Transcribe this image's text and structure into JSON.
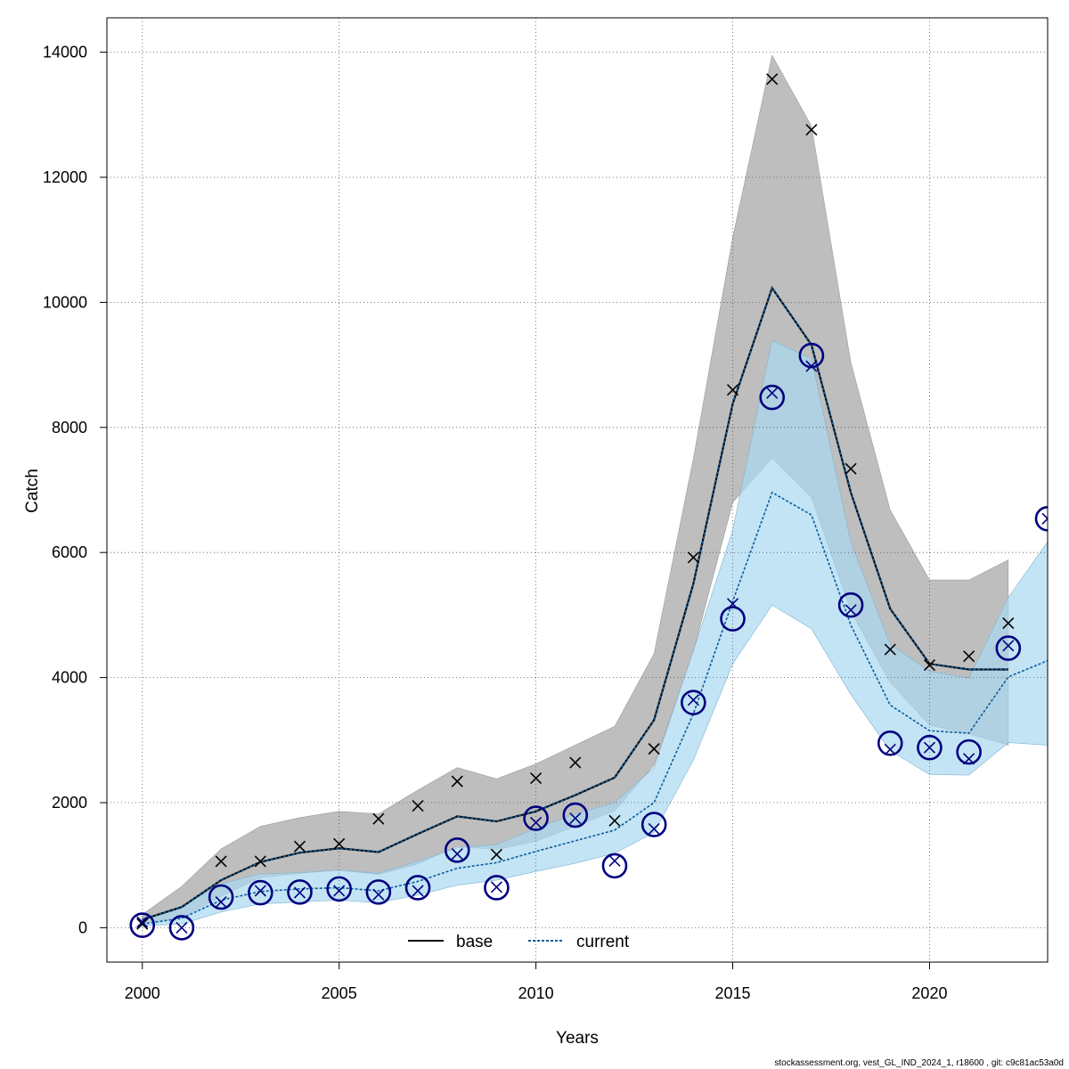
{
  "chart_data": {
    "type": "line",
    "xlabel": "Years",
    "ylabel": "Catch",
    "xlim": [
      1999.1,
      2023.0
    ],
    "ylim": [
      -550,
      14550
    ],
    "x_ticks": [
      2000,
      2005,
      2010,
      2015,
      2020
    ],
    "y_ticks": [
      0,
      2000,
      4000,
      6000,
      8000,
      10000,
      12000,
      14000
    ],
    "grid": true,
    "legend_position": "bottom-center",
    "footer": "stockassessment.org, vest_GL_IND_2024_1, r18600 , git: c9c81ac53a0d",
    "series": [
      {
        "name": "base",
        "color": "#000000",
        "band_color": "#bebebe",
        "x": [
          2000,
          2001,
          2002,
          2003,
          2004,
          2005,
          2006,
          2007,
          2008,
          2009,
          2010,
          2011,
          2012,
          2013,
          2014,
          2015,
          2016,
          2017,
          2018,
          2019,
          2020,
          2021,
          2022
        ],
        "estimate": [
          130,
          330,
          760,
          1050,
          1200,
          1270,
          1210,
          1500,
          1780,
          1700,
          1860,
          2120,
          2400,
          3320,
          5500,
          8380,
          10230,
          9320,
          6960,
          5100,
          4220,
          4130,
          4130
        ],
        "lower": [
          80,
          160,
          500,
          800,
          870,
          920,
          850,
          1020,
          1300,
          1250,
          1380,
          1620,
          1870,
          2600,
          4420,
          6800,
          7510,
          6880,
          5060,
          3920,
          3240,
          3100,
          2920
        ],
        "upper": [
          210,
          660,
          1260,
          1620,
          1760,
          1860,
          1820,
          2200,
          2560,
          2380,
          2620,
          2920,
          3220,
          4380,
          7500,
          11040,
          13950,
          12820,
          9040,
          6680,
          5560,
          5560,
          5880
        ],
        "observed": [
          60,
          null,
          1060,
          1060,
          1300,
          1340,
          1740,
          1950,
          2340,
          1170,
          2390,
          2640,
          1710,
          2860,
          5920,
          8600,
          13570,
          12760,
          7340,
          4450,
          4200,
          4340,
          4870
        ]
      },
      {
        "name": "current",
        "color": "#0b5c9e",
        "band_color": "#aad8f0",
        "x": [
          2000,
          2001,
          2002,
          2003,
          2004,
          2005,
          2006,
          2007,
          2008,
          2009,
          2010,
          2011,
          2012,
          2013,
          2014,
          2015,
          2016,
          2017,
          2018,
          2019,
          2020,
          2021,
          2022,
          2023
        ],
        "estimate": [
          60,
          150,
          440,
          580,
          620,
          640,
          590,
          740,
          950,
          1040,
          1220,
          1390,
          1560,
          2000,
          3420,
          5220,
          6960,
          6600,
          4840,
          3560,
          3150,
          3110,
          4010,
          4270
        ],
        "lower": [
          30,
          60,
          250,
          380,
          410,
          440,
          400,
          520,
          680,
          760,
          900,
          1030,
          1190,
          1520,
          2680,
          4220,
          5160,
          4780,
          3730,
          2830,
          2450,
          2440,
          2960,
          2920
        ],
        "upper": [
          130,
          340,
          700,
          860,
          880,
          920,
          870,
          1060,
          1280,
          1330,
          1590,
          1820,
          2000,
          2560,
          4430,
          6360,
          9390,
          9100,
          6160,
          4530,
          4100,
          3990,
          5280,
          6170
        ],
        "observed": [
          90,
          0,
          410,
          590,
          560,
          590,
          530,
          590,
          1180,
          650,
          1680,
          1750,
          1070,
          1580,
          3640,
          5180,
          8550,
          8980,
          5080,
          2850,
          2880,
          2700,
          4510,
          6540
        ],
        "points": [
          40,
          0,
          490,
          560,
          570,
          620,
          570,
          640,
          1240,
          640,
          1750,
          1800,
          990,
          1650,
          3600,
          4940,
          8480,
          9150,
          5160,
          2950,
          2880,
          2810,
          4470,
          6540
        ]
      }
    ]
  }
}
